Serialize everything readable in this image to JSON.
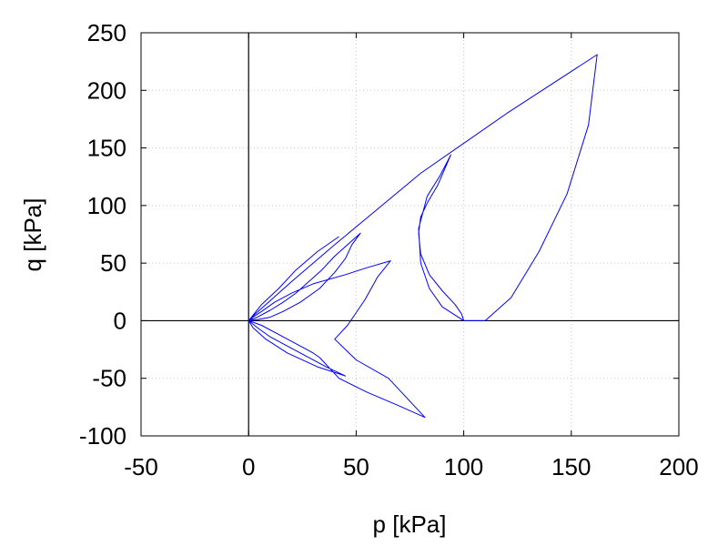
{
  "chart_data": {
    "type": "line",
    "title": "",
    "xlabel": "p [kPa]",
    "ylabel": "q [kPa]",
    "xlim": [
      -50,
      200
    ],
    "ylim": [
      -100,
      250
    ],
    "xticks": [
      -50,
      0,
      50,
      100,
      150,
      200
    ],
    "yticks": [
      -100,
      -50,
      0,
      50,
      100,
      150,
      200,
      250
    ],
    "grid": true,
    "zero_lines": true,
    "legend": "none",
    "series": [
      {
        "color": "#0000ff",
        "x": [
          100,
          99,
          96,
          90,
          84,
          80,
          79,
          80,
          83,
          88,
          94,
          89,
          83,
          79,
          80,
          84,
          90,
          100,
          110,
          122,
          135,
          148,
          158,
          162,
          120,
          80,
          40,
          20,
          8,
          2,
          0,
          2,
          6,
          12,
          20,
          30,
          45,
          55,
          66,
          60,
          54,
          46,
          40,
          50,
          65,
          82,
          70,
          55,
          42,
          33,
          30,
          28,
          22,
          14,
          6,
          0,
          4,
          10,
          18,
          28,
          36,
          45,
          32,
          18,
          8,
          2,
          0,
          4,
          10,
          16,
          22,
          28,
          34,
          40,
          46,
          52,
          48,
          45,
          40,
          33,
          24,
          16,
          10,
          4,
          0,
          6,
          14,
          22,
          32,
          42
        ],
        "y": [
          0,
          6,
          14,
          26,
          40,
          58,
          76,
          90,
          102,
          118,
          144,
          126,
          108,
          80,
          50,
          28,
          12,
          0,
          0,
          20,
          60,
          110,
          170,
          231,
          180,
          128,
          66,
          34,
          14,
          4,
          0,
          3,
          8,
          16,
          24,
          32,
          40,
          46,
          52,
          38,
          18,
          -4,
          -16,
          -34,
          -50,
          -84,
          -74,
          -62,
          -50,
          -32,
          -28,
          -26,
          -20,
          -12,
          -4,
          0,
          -6,
          -14,
          -22,
          -32,
          -40,
          -48,
          -40,
          -28,
          -16,
          -6,
          0,
          3,
          9,
          16,
          24,
          34,
          44,
          56,
          66,
          76,
          66,
          54,
          42,
          28,
          16,
          8,
          3,
          1,
          0,
          14,
          28,
          44,
          60,
          73
        ]
      }
    ]
  }
}
